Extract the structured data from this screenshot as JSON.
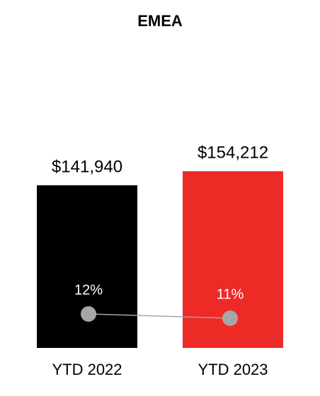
{
  "chart_data": {
    "type": "bar",
    "title": "EMEA",
    "categories": [
      "YTD 2022",
      "YTD 2023"
    ],
    "values": [
      141940,
      154212
    ],
    "value_labels": [
      "$141,940",
      "$154,212"
    ],
    "colors": [
      "#000000",
      "#ee2a27"
    ],
    "ylim": [
      0,
      250000
    ],
    "line": {
      "values": [
        12,
        11
      ],
      "value_labels": [
        "12%",
        "11%"
      ],
      "color": "#a6a6a6",
      "axis": "y2"
    },
    "y2lim": [
      4,
      71.5
    ]
  }
}
